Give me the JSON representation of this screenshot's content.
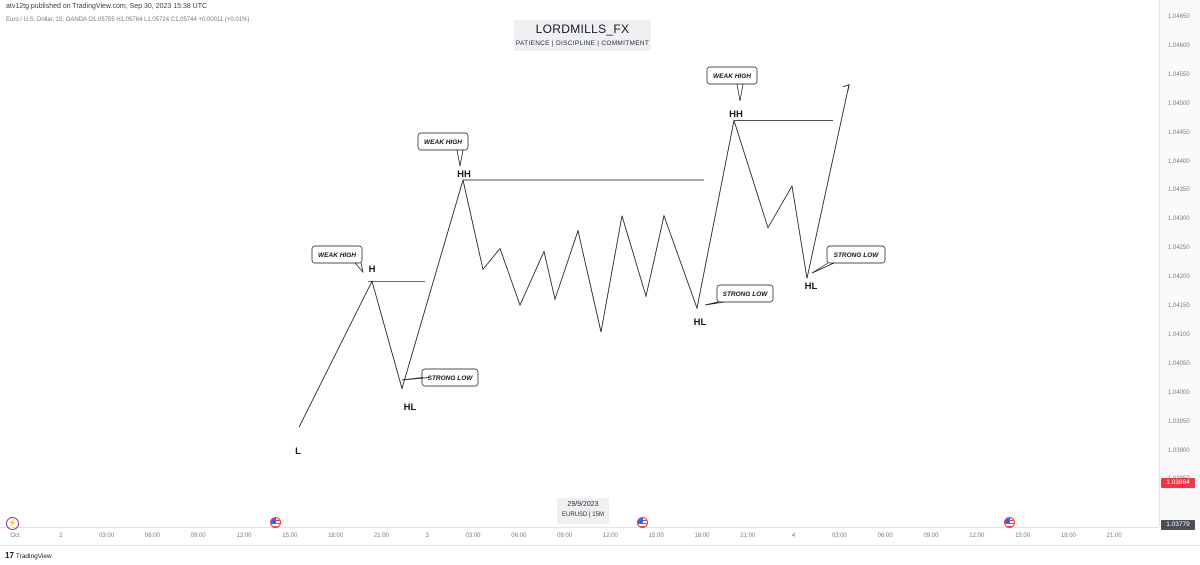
{
  "header": {
    "published_line": "atv12tg published on TradingView.com, Sep 30, 2023 15:38 UTC",
    "legend_line": "Euro / U.S. Dollar, 15, OANDA  O1.05755  H1.05764  L1.05724  C1.05744  +0.00011 (+0.01%)"
  },
  "watermark": {
    "title": "LORDMILLS_FX",
    "subtitle": "PATIENCE | DISCIPLINE | COMMITMENT"
  },
  "chart_data": {
    "type": "line",
    "price_ticks": [
      "1.04650",
      "1.04600",
      "1.04550",
      "1.04500",
      "1.04450",
      "1.04400",
      "1.04350",
      "1.04300",
      "1.04250",
      "1.04200",
      "1.04150",
      "1.04100",
      "1.04050",
      "1.04000",
      "1.03950",
      "1.03900",
      "1.03850"
    ],
    "time_ticks": [
      "Oct",
      "2",
      "03:00",
      "06:00",
      "09:00",
      "12:00",
      "15:00",
      "18:00",
      "21:00",
      "3",
      "03:00",
      "06:00",
      "09:00",
      "12:00",
      "15:00",
      "18:00",
      "21:00",
      "4",
      "03:00",
      "06:00",
      "09:00",
      "12:00",
      "15:00",
      "18:00",
      "21:00"
    ],
    "series": [
      {
        "values": [
          1.0396,
          1.04205,
          1.04025,
          1.04375,
          1.04225,
          1.0426,
          1.04165,
          1.04255,
          1.04175,
          1.0429,
          1.0412,
          1.04315,
          1.0418,
          1.04315,
          1.0416,
          1.04475,
          1.04295,
          1.04365,
          1.0421,
          1.04535
        ]
      }
    ],
    "annotations": {
      "swing_labels": [
        "L",
        "H",
        "HL",
        "HH",
        "HL",
        "HH",
        "HL"
      ],
      "callouts": [
        "WEAK HIGH",
        "STRONG LOW",
        "WEAK HIGH",
        "STRONG LOW",
        "WEAK HIGH",
        "STRONG LOW"
      ],
      "levels": [
        1.04205,
        1.04375,
        1.04475
      ]
    }
  },
  "price_axis": {
    "last_price": "1.03864",
    "low_marker": "1.03779",
    "last_color": "#f23645",
    "low_color": "#4a4e59"
  },
  "date_box": {
    "date": "29/9/2023",
    "symbol": "EURUSD | 15M"
  },
  "footer": {
    "logo_text": "TradingView",
    "logo_mark": "17"
  },
  "icons": {
    "theme": "lightning-icon",
    "flags": [
      "us-flag-icon",
      "us-flag-icon",
      "us-flag-icon"
    ]
  }
}
